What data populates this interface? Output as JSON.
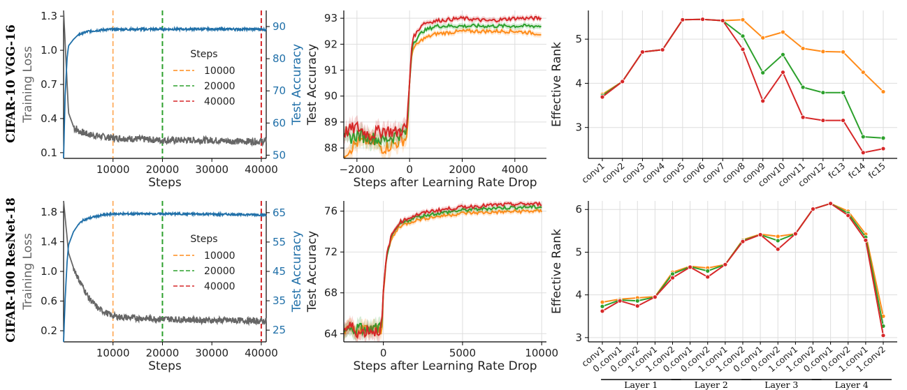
{
  "row_labels": [
    "CIFAR-10  VGG-16",
    "CIFAR-100  ResNet-18"
  ],
  "colors": {
    "loss": "#666666",
    "acc": "#1f6fa8",
    "s10000": "#ff8c1a",
    "s20000": "#2ca02c",
    "s40000": "#d62728",
    "grid": "#dddddd"
  },
  "legend": {
    "title": "Steps",
    "entries": [
      "10000",
      "20000",
      "40000"
    ]
  },
  "chart_data": [
    {
      "id": "vgg_train",
      "type": "line",
      "xlabel": "Steps",
      "ylabel_left": "Training Loss",
      "ylabel_right": "Test Accuracy",
      "xlim": [
        0,
        41000
      ],
      "ylim_left": [
        0.05,
        1.35
      ],
      "ylim_right": [
        49,
        95
      ],
      "xticks": [
        10000,
        20000,
        30000,
        40000
      ],
      "yticks_left": [
        0.1,
        0.4,
        0.7,
        1.0,
        1.3
      ],
      "yticks_left_labels": [
        "0.1",
        "0.4",
        "0.7",
        "1.0",
        "1.3"
      ],
      "yticks_right": [
        50,
        60,
        70,
        80,
        90
      ],
      "vlines": [
        10000,
        20000,
        40000
      ],
      "series": [
        {
          "name": "Training Loss",
          "x": [
            0,
            500,
            1000,
            2000,
            3000,
            5000,
            8000,
            10000,
            15000,
            20000,
            25000,
            30000,
            35000,
            40000,
            41000
          ],
          "values": [
            1.35,
            0.9,
            0.45,
            0.33,
            0.29,
            0.26,
            0.24,
            0.23,
            0.22,
            0.21,
            0.21,
            0.21,
            0.2,
            0.2,
            0.2
          ]
        },
        {
          "name": "Test Accuracy",
          "x": [
            0,
            300,
            700,
            1000,
            2000,
            3000,
            5000,
            8000,
            10000,
            20000,
            30000,
            40000,
            41000
          ],
          "values": [
            49,
            68,
            80,
            84,
            86,
            87.5,
            88.5,
            89,
            89.1,
            89.2,
            89.2,
            89.2,
            89.0
          ]
        }
      ]
    },
    {
      "id": "vgg_drop",
      "type": "line",
      "xlabel": "Steps after Learning Rate Drop",
      "ylabel": "Test Accuracy",
      "xlim": [
        -2500,
        5200
      ],
      "ylim": [
        87.6,
        93.3
      ],
      "xticks": [
        -2000,
        0,
        2000,
        4000
      ],
      "yticks": [
        88,
        89,
        90,
        91,
        92,
        93
      ],
      "series": [
        {
          "name": "10000",
          "x": [
            -2500,
            -2000,
            -1500,
            -1000,
            -500,
            -100,
            0,
            100,
            500,
            1000,
            2000,
            3000,
            4000,
            5000
          ],
          "values": [
            87.8,
            88.2,
            88.3,
            88.0,
            88.2,
            88.4,
            90.5,
            91.8,
            92.2,
            92.4,
            92.5,
            92.5,
            92.5,
            92.4
          ]
        },
        {
          "name": "20000",
          "x": [
            -2500,
            -2000,
            -1500,
            -1000,
            -500,
            -100,
            0,
            100,
            500,
            1000,
            2000,
            3000,
            4000,
            5000
          ],
          "values": [
            88.3,
            88.5,
            88.4,
            88.3,
            88.5,
            88.6,
            90.5,
            92.0,
            92.5,
            92.7,
            92.7,
            92.7,
            92.7,
            92.7
          ]
        },
        {
          "name": "40000",
          "x": [
            -2500,
            -2000,
            -1500,
            -1000,
            -500,
            -100,
            0,
            100,
            500,
            1000,
            2000,
            3000,
            4000,
            5000
          ],
          "values": [
            88.6,
            88.8,
            88.5,
            88.7,
            88.6,
            88.8,
            90.6,
            92.2,
            92.8,
            92.9,
            93.0,
            92.9,
            93.0,
            93.0
          ]
        }
      ]
    },
    {
      "id": "vgg_rank",
      "type": "line",
      "xlabel": "",
      "ylabel": "Effective Rank",
      "ylim": [
        2.3,
        5.65
      ],
      "yticks": [
        3,
        4,
        5
      ],
      "categories": [
        "conv1",
        "conv2",
        "conv3",
        "conv4",
        "conv5",
        "conv6",
        "conv7",
        "conv8",
        "conv9",
        "conv10",
        "conv11",
        "conv12",
        "fc13",
        "fc14",
        "fc15"
      ],
      "series": [
        {
          "name": "10000",
          "values": [
            3.75,
            4.04,
            4.71,
            4.76,
            5.44,
            5.45,
            5.42,
            5.44,
            5.03,
            5.16,
            4.79,
            4.72,
            4.71,
            4.25,
            3.81
          ]
        },
        {
          "name": "20000",
          "values": [
            3.72,
            4.04,
            4.71,
            4.76,
            5.44,
            5.45,
            5.42,
            5.07,
            4.24,
            4.65,
            3.91,
            3.79,
            3.79,
            2.79,
            2.76
          ]
        },
        {
          "name": "40000",
          "values": [
            3.69,
            4.04,
            4.71,
            4.76,
            5.44,
            5.45,
            5.42,
            4.77,
            3.6,
            4.25,
            3.23,
            3.16,
            3.16,
            2.43,
            2.52
          ]
        }
      ]
    },
    {
      "id": "resnet_train",
      "type": "line",
      "xlabel": "Steps",
      "ylabel_left": "Training Loss",
      "ylabel_right": "Test Accuracy",
      "xlim": [
        0,
        41000
      ],
      "ylim_left": [
        0.05,
        1.95
      ],
      "ylim_right": [
        21,
        69
      ],
      "xticks": [
        10000,
        20000,
        30000,
        40000
      ],
      "yticks_left": [
        0.2,
        0.6,
        1.0,
        1.4,
        1.8
      ],
      "yticks_left_labels": [
        "0.2",
        "0.6",
        "1.0",
        "1.4",
        "1.8"
      ],
      "yticks_right": [
        25,
        35,
        45,
        55,
        65
      ],
      "vlines": [
        10000,
        20000,
        40000
      ],
      "series": [
        {
          "name": "Training Loss",
          "x": [
            0,
            500,
            1000,
            2000,
            3000,
            4000,
            5000,
            7000,
            9000,
            10000,
            12000,
            15000,
            20000,
            25000,
            30000,
            35000,
            40000,
            41000
          ],
          "values": [
            1.95,
            1.6,
            1.25,
            1.05,
            0.9,
            0.78,
            0.65,
            0.5,
            0.43,
            0.4,
            0.38,
            0.37,
            0.36,
            0.35,
            0.34,
            0.34,
            0.33,
            0.33
          ]
        },
        {
          "name": "Test Accuracy",
          "x": [
            0,
            300,
            700,
            1000,
            2000,
            3000,
            4000,
            6000,
            8000,
            10000,
            20000,
            30000,
            40000,
            41000
          ],
          "values": [
            21,
            35,
            48,
            54,
            58.5,
            61,
            62.5,
            63.5,
            64.2,
            64.6,
            64.6,
            64.5,
            64.3,
            64.2
          ]
        }
      ]
    },
    {
      "id": "resnet_drop",
      "type": "line",
      "xlabel": "Steps after Learning Rate Drop",
      "ylabel": "Test Accuracy",
      "xlim": [
        -2500,
        10300
      ],
      "ylim": [
        63.2,
        77.0
      ],
      "xticks": [
        0,
        5000,
        10000
      ],
      "yticks": [
        64,
        68,
        72,
        76
      ],
      "series": [
        {
          "name": "10000",
          "x": [
            -2500,
            -2000,
            -1500,
            -1000,
            -500,
            -100,
            0,
            200,
            500,
            1000,
            2000,
            3000,
            5000,
            7000,
            9000,
            10000
          ],
          "values": [
            64.3,
            64.4,
            64.2,
            64.5,
            64.3,
            64.4,
            68.0,
            71.5,
            73.2,
            74.5,
            75.1,
            75.4,
            75.8,
            75.9,
            76.0,
            76.0
          ]
        },
        {
          "name": "20000",
          "x": [
            -2500,
            -2000,
            -1500,
            -1000,
            -500,
            -100,
            0,
            200,
            500,
            1000,
            2000,
            3000,
            5000,
            7000,
            9000,
            10000
          ],
          "values": [
            64.6,
            64.3,
            64.5,
            64.3,
            64.5,
            64.4,
            68.0,
            71.6,
            73.4,
            74.7,
            75.4,
            75.7,
            76.1,
            76.3,
            76.4,
            76.4
          ]
        },
        {
          "name": "40000",
          "x": [
            -2500,
            -2000,
            -1500,
            -1000,
            -500,
            -100,
            0,
            200,
            500,
            1000,
            2000,
            3000,
            5000,
            7000,
            9000,
            10000
          ],
          "values": [
            64.4,
            64.7,
            64.0,
            64.4,
            64.2,
            64.6,
            68.1,
            71.7,
            73.6,
            74.9,
            75.6,
            76.0,
            76.4,
            76.6,
            76.7,
            76.7
          ]
        }
      ]
    },
    {
      "id": "resnet_rank",
      "type": "line",
      "xlabel": "",
      "ylabel": "Effective Rank",
      "ylim": [
        2.9,
        6.2
      ],
      "yticks": [
        3,
        4,
        5,
        6
      ],
      "categories": [
        "conv1",
        "0.conv1",
        "0.conv2",
        "1.conv1",
        "1.conv2",
        "0.conv1",
        "0.conv2",
        "1.conv1",
        "1.conv2",
        "0.conv1",
        "0.conv2",
        "1.conv1",
        "1.conv2",
        "0.conv1",
        "0.conv2",
        "1.conv1",
        "1.conv2"
      ],
      "groups": [
        {
          "label": "Layer 1",
          "start": 1,
          "end": 4
        },
        {
          "label": "Layer 2",
          "start": 5,
          "end": 8
        },
        {
          "label": "Layer 3",
          "start": 9,
          "end": 12
        },
        {
          "label": "Layer 4",
          "start": 13,
          "end": 16
        }
      ],
      "series": [
        {
          "name": "10000",
          "values": [
            3.83,
            3.9,
            3.93,
            3.96,
            4.53,
            4.67,
            4.63,
            4.71,
            5.29,
            5.42,
            5.37,
            5.43,
            6.01,
            6.14,
            5.96,
            5.42,
            3.5
          ]
        },
        {
          "name": "20000",
          "values": [
            3.73,
            3.88,
            3.86,
            3.95,
            4.49,
            4.66,
            4.56,
            4.71,
            5.27,
            5.41,
            5.27,
            5.43,
            6.01,
            6.14,
            5.91,
            5.35,
            3.27
          ]
        },
        {
          "name": "40000",
          "values": [
            3.62,
            3.86,
            3.74,
            3.95,
            4.4,
            4.65,
            4.42,
            4.71,
            5.25,
            5.41,
            5.07,
            5.43,
            6.01,
            6.14,
            5.86,
            5.28,
            3.05
          ]
        }
      ]
    }
  ]
}
